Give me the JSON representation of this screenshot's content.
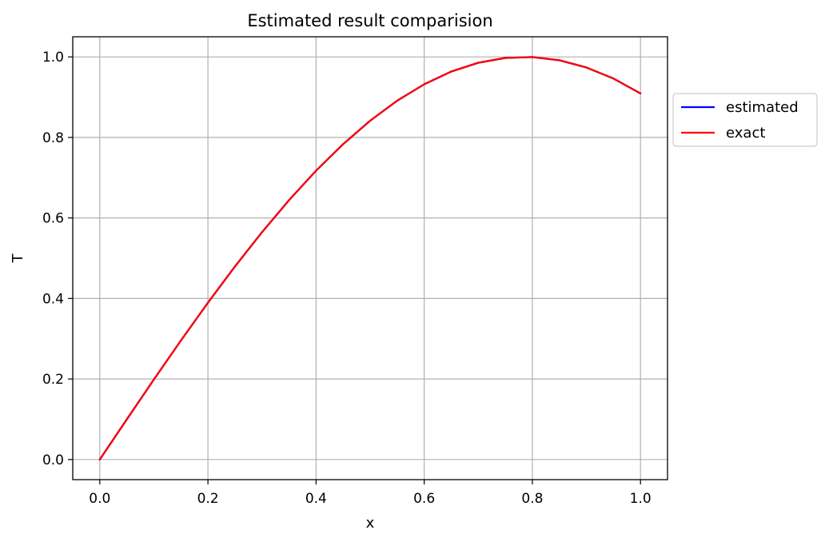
{
  "chart_data": {
    "type": "line",
    "title": "Estimated result comparision",
    "xlabel": "x",
    "ylabel": "T",
    "xlim": [
      -0.05,
      1.05
    ],
    "ylim": [
      -0.05,
      1.05
    ],
    "xticks": [
      0.0,
      0.2,
      0.4,
      0.6,
      0.8,
      1.0
    ],
    "yticks": [
      0.0,
      0.2,
      0.4,
      0.6,
      0.8,
      1.0
    ],
    "xtick_labels": [
      "0.0",
      "0.2",
      "0.4",
      "0.6",
      "0.8",
      "1.0"
    ],
    "ytick_labels": [
      "0.0",
      "0.2",
      "0.4",
      "0.6",
      "0.8",
      "1.0"
    ],
    "grid": true,
    "legend_placement": "outside-right-top",
    "x": [
      0.0,
      0.05,
      0.1,
      0.15,
      0.2,
      0.25,
      0.3,
      0.35,
      0.4,
      0.45,
      0.5,
      0.55,
      0.6,
      0.65,
      0.7,
      0.75,
      0.8,
      0.85,
      0.9,
      0.95,
      1.0
    ],
    "series": [
      {
        "name": "estimated",
        "color": "#0000ff",
        "values": [
          0.0,
          0.0998,
          0.1987,
          0.2955,
          0.3894,
          0.4794,
          0.5646,
          0.6442,
          0.7174,
          0.7833,
          0.8415,
          0.8912,
          0.932,
          0.9636,
          0.9854,
          0.9975,
          0.9996,
          0.9917,
          0.9738,
          0.9463,
          0.9093
        ]
      },
      {
        "name": "exact",
        "color": "#ff0000",
        "values": [
          0.0,
          0.0998,
          0.1987,
          0.2955,
          0.3894,
          0.4794,
          0.5646,
          0.6442,
          0.7174,
          0.7833,
          0.8415,
          0.8912,
          0.932,
          0.9636,
          0.9854,
          0.9975,
          0.9996,
          0.9917,
          0.9738,
          0.9463,
          0.9093
        ]
      }
    ]
  }
}
